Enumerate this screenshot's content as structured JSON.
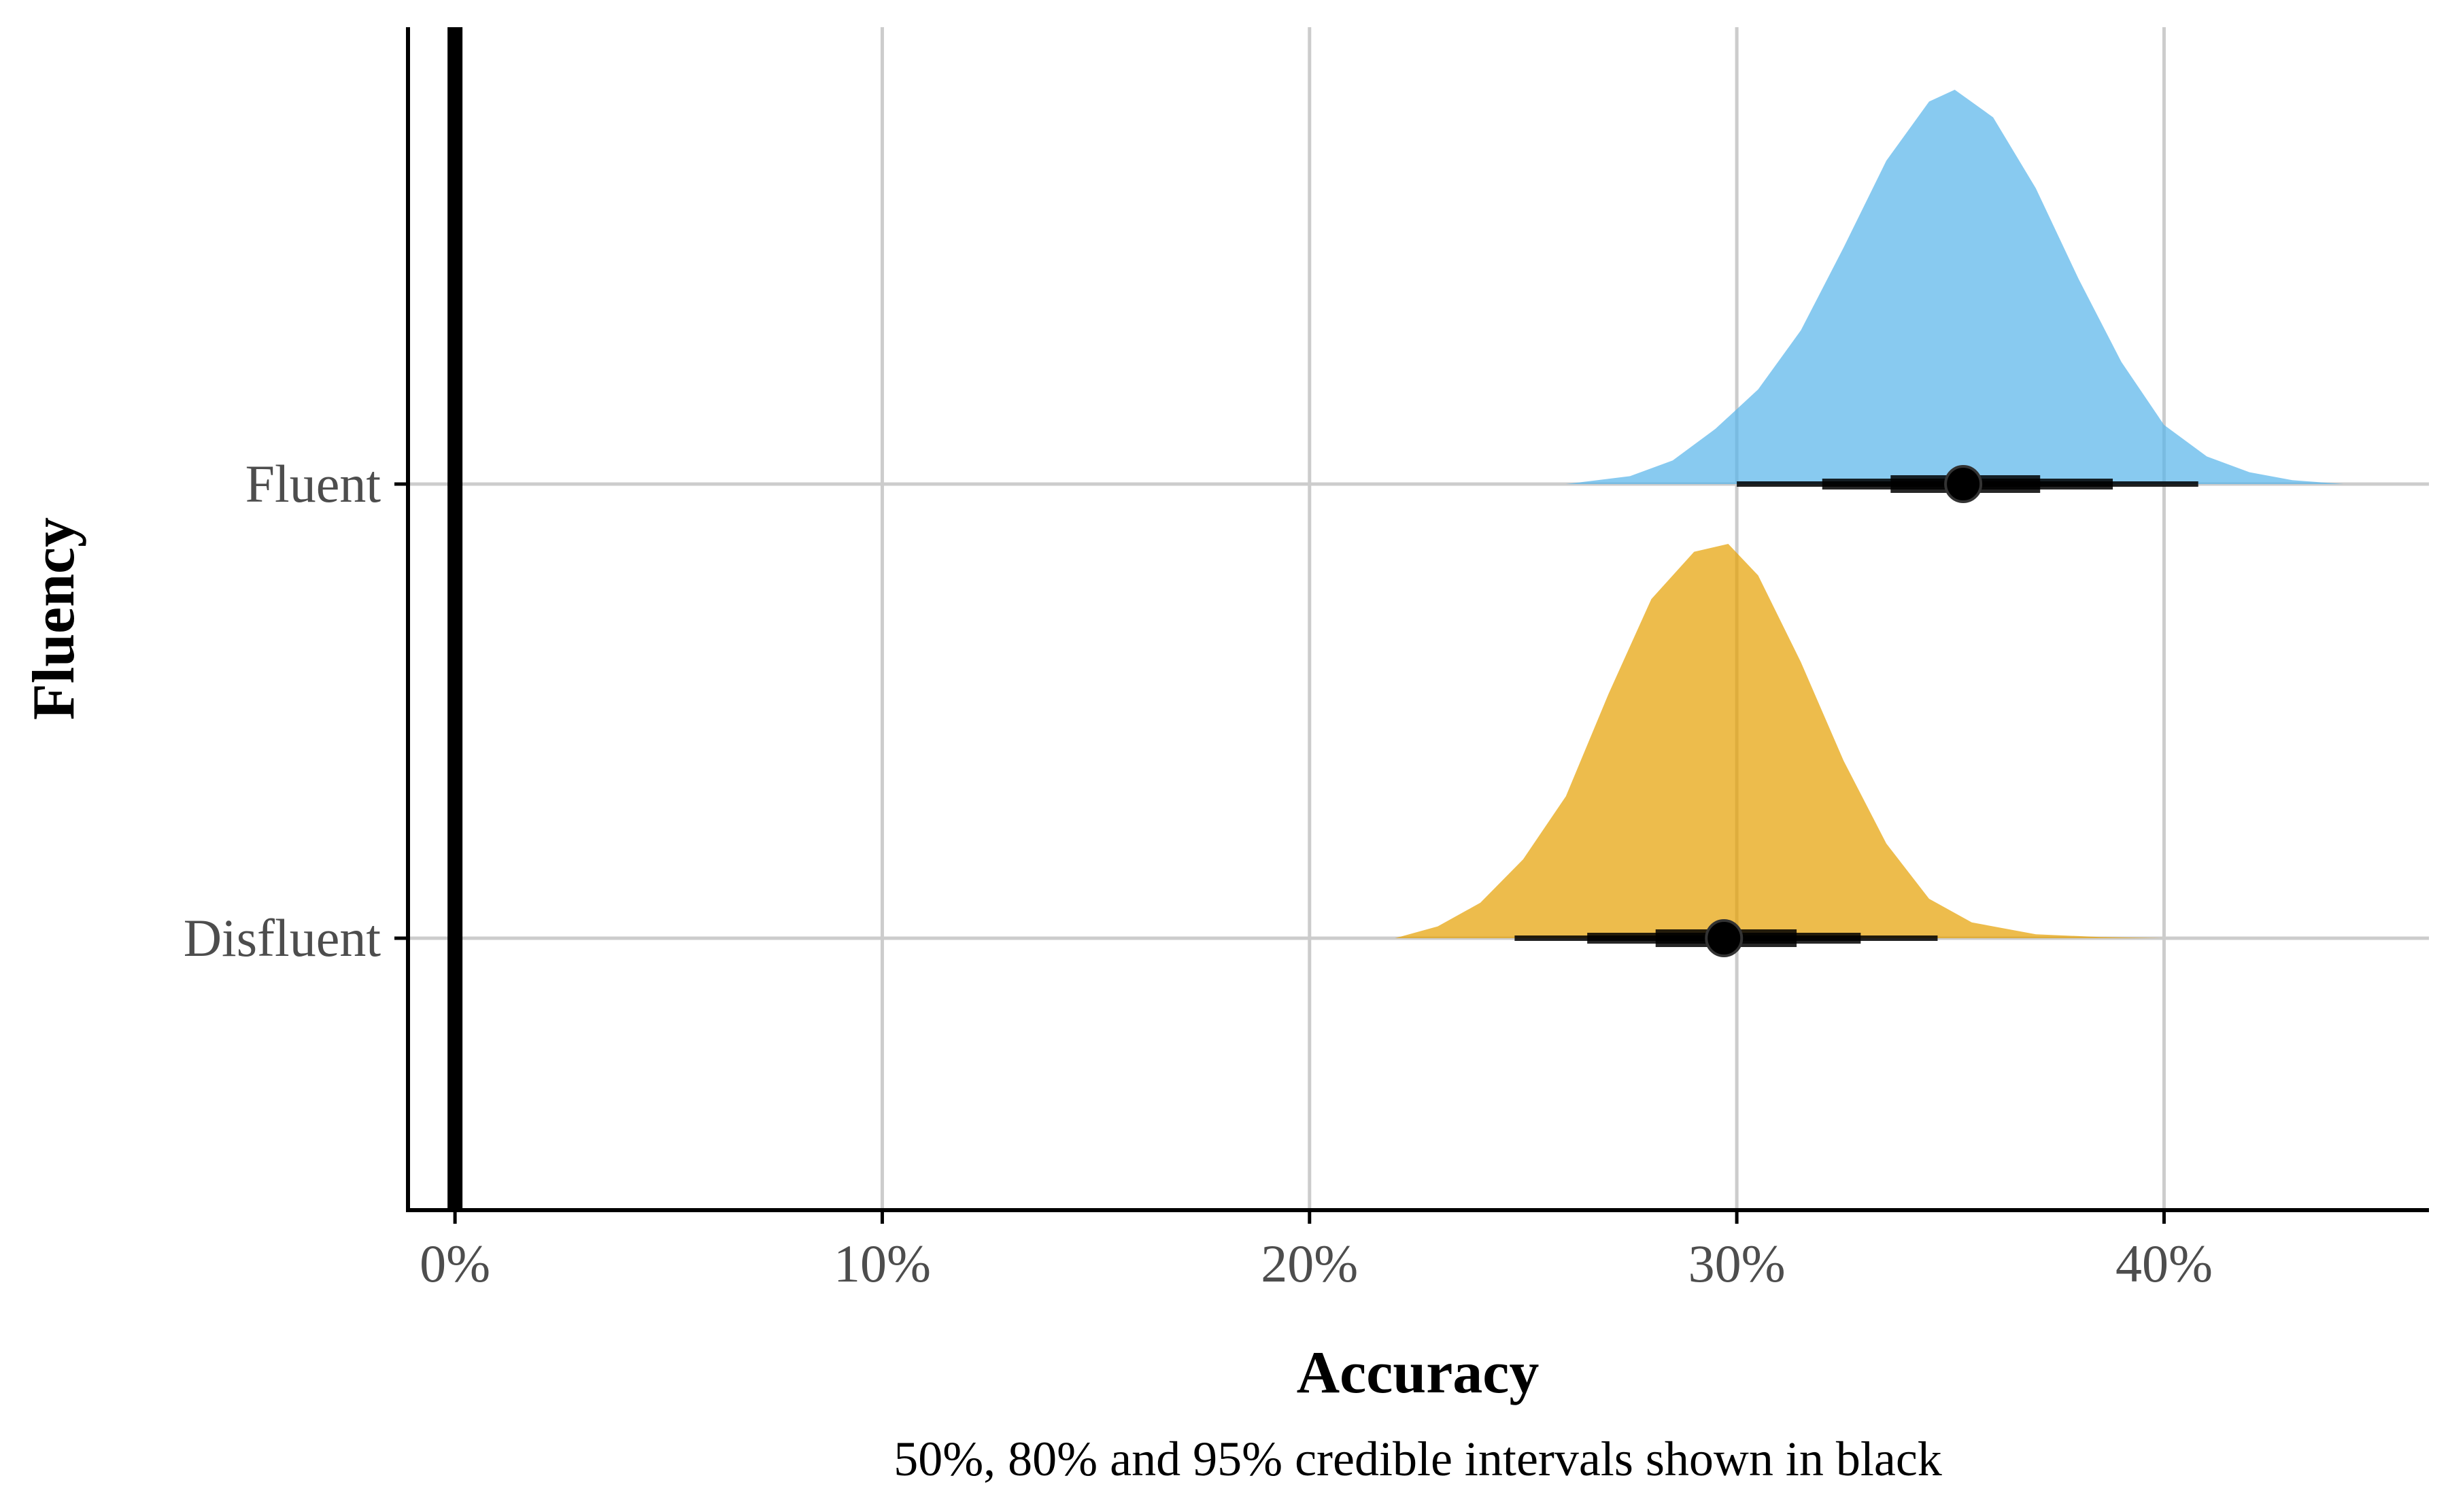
{
  "chart_data": {
    "type": "halfeye",
    "xlabel": "Accuracy",
    "ylabel": "Fluency",
    "caption": "50%, 80% and 95% credible intervals shown in black",
    "xlim": [
      -1.1,
      46.2
    ],
    "x_ticks": [
      {
        "value": 0,
        "label": "0%"
      },
      {
        "value": 10,
        "label": "10%"
      },
      {
        "value": 20,
        "label": "20%"
      },
      {
        "value": 30,
        "label": "30%"
      },
      {
        "value": 40,
        "label": "40%"
      }
    ],
    "reference_line_x": 0,
    "grid": true,
    "categories": [
      "Fluent",
      "Disfluent"
    ],
    "series": [
      {
        "name": "Fluent",
        "color": "#56B4E9",
        "median": 35.3,
        "intervals": {
          "50": [
            33.6,
            37.1
          ],
          "80": [
            32.0,
            38.8
          ],
          "95": [
            30.0,
            40.8
          ]
        },
        "density": [
          [
            26.0,
            0.0
          ],
          [
            27.5,
            0.02
          ],
          [
            28.5,
            0.06
          ],
          [
            29.5,
            0.14
          ],
          [
            30.5,
            0.24
          ],
          [
            31.5,
            0.39
          ],
          [
            32.5,
            0.6
          ],
          [
            33.5,
            0.82
          ],
          [
            34.5,
            0.97
          ],
          [
            35.1,
            1.0
          ],
          [
            36.0,
            0.93
          ],
          [
            37.0,
            0.75
          ],
          [
            38.0,
            0.52
          ],
          [
            39.0,
            0.31
          ],
          [
            40.0,
            0.15
          ],
          [
            41.0,
            0.07
          ],
          [
            42.0,
            0.03
          ],
          [
            43.0,
            0.01
          ],
          [
            44.2,
            0.0
          ]
        ]
      },
      {
        "name": "Disfluent",
        "color": "#E69F00",
        "median": 29.7,
        "intervals": {
          "50": [
            28.1,
            31.4
          ],
          "80": [
            26.5,
            32.9
          ],
          "95": [
            24.8,
            34.7
          ]
        },
        "density": [
          [
            22.0,
            0.0
          ],
          [
            23.0,
            0.03
          ],
          [
            24.0,
            0.09
          ],
          [
            25.0,
            0.2
          ],
          [
            26.0,
            0.36
          ],
          [
            27.0,
            0.62
          ],
          [
            28.0,
            0.86
          ],
          [
            29.0,
            0.98
          ],
          [
            29.8,
            1.0
          ],
          [
            30.5,
            0.92
          ],
          [
            31.5,
            0.7
          ],
          [
            32.5,
            0.45
          ],
          [
            33.5,
            0.24
          ],
          [
            34.5,
            0.1
          ],
          [
            35.5,
            0.04
          ],
          [
            37.0,
            0.01
          ],
          [
            38.5,
            0.003
          ],
          [
            40.0,
            0.0
          ]
        ]
      }
    ]
  }
}
